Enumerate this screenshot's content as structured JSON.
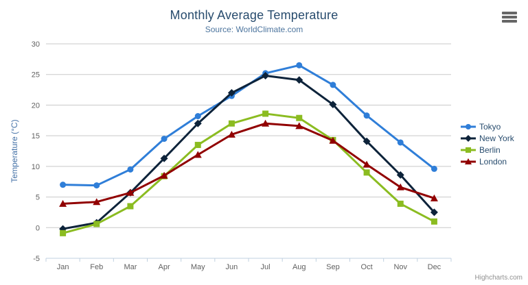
{
  "chart": {
    "title": "Monthly Average Temperature",
    "subtitle": "Source: WorldClimate.com",
    "credits": "Highcharts.com",
    "export_menu_icon": "hamburger-menu-icon"
  },
  "colors": {
    "title": "#274b6d",
    "subtitle": "#4d759e",
    "axis_title": "#4572a7",
    "tick_label": "#606060",
    "gridline": "#c8c8c8",
    "axis_line": "#c0d0e0",
    "legend_text": "#274b6d",
    "credits_text": "#909090",
    "menu_icon": "#666666",
    "background": "#ffffff"
  },
  "chart_data": {
    "type": "line",
    "title": "Monthly Average Temperature",
    "subtitle": "Source: WorldClimate.com",
    "xlabel": "",
    "ylabel": "Temperature (°C)",
    "ylim": [
      -5,
      30
    ],
    "ytick_interval": 5,
    "grid": true,
    "legend_position": "right",
    "categories": [
      "Jan",
      "Feb",
      "Mar",
      "Apr",
      "May",
      "Jun",
      "Jul",
      "Aug",
      "Sep",
      "Oct",
      "Nov",
      "Dec"
    ],
    "series": [
      {
        "name": "Tokyo",
        "color": "#2f7ed8",
        "marker": "circle",
        "values": [
          7.0,
          6.9,
          9.5,
          14.5,
          18.2,
          21.5,
          25.2,
          26.5,
          23.3,
          18.3,
          13.9,
          9.6
        ]
      },
      {
        "name": "New York",
        "color": "#0d233a",
        "marker": "diamond",
        "values": [
          -0.2,
          0.8,
          5.7,
          11.3,
          17.0,
          22.0,
          24.8,
          24.1,
          20.1,
          14.1,
          8.6,
          2.5
        ]
      },
      {
        "name": "Berlin",
        "color": "#8bbc21",
        "marker": "square",
        "values": [
          -0.9,
          0.6,
          3.5,
          8.4,
          13.5,
          17.0,
          18.6,
          17.9,
          14.3,
          9.0,
          3.9,
          1.0
        ]
      },
      {
        "name": "London",
        "color": "#910000",
        "marker": "triangle",
        "values": [
          3.9,
          4.2,
          5.7,
          8.5,
          11.9,
          15.2,
          17.0,
          16.6,
          14.2,
          10.3,
          6.6,
          4.8
        ]
      }
    ]
  }
}
